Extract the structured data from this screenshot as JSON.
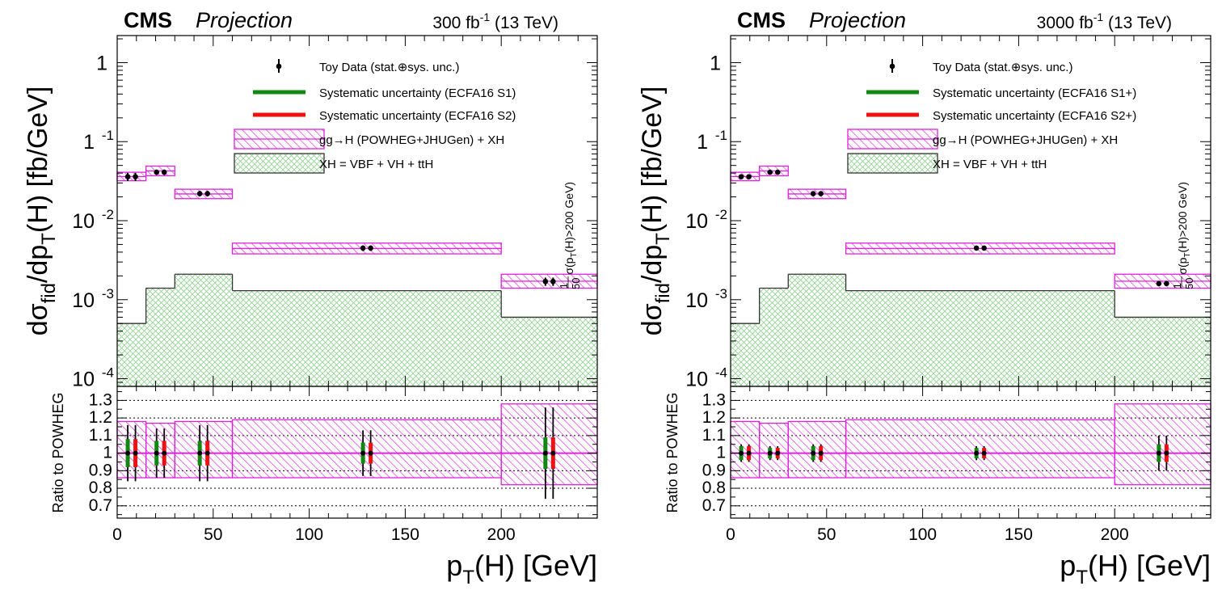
{
  "colors": {
    "magenta": "#e020e0",
    "green_band": "#8fd08f",
    "green_bar": "#118811",
    "red_bar": "#ee1111",
    "axis": "#000000"
  },
  "chart_data": [
    {
      "type": "bar",
      "experiment": "CMS",
      "label": "Projection",
      "lumi_main": "300 fb",
      "lumi_sup": "-1",
      "lumi_tail": " (13 TeV)",
      "xlabel_main": "p",
      "xlabel_sub": "T",
      "xlabel_tail": "(H) [GeV]",
      "ylabel": "dσfid/dpT(H) [fb/GeV]",
      "ylabel_parts": {
        "d_sigma": "dσ",
        "fid": "fid",
        "mid": "/dp",
        "T": "T",
        "tail": "(H) [fb/GeV]"
      },
      "yscale": "log",
      "ylim": [
        8e-05,
        2.2
      ],
      "xlim": [
        0,
        250
      ],
      "x_ticks": [
        "0",
        "50",
        "100",
        "150",
        "200"
      ],
      "x_tick_values": [
        0,
        50,
        100,
        150,
        200
      ],
      "y_tick_labels": [
        "10",
        "10",
        "10",
        "1"
      ],
      "y_tick_sup": [
        "-4",
        "-3",
        "-2",
        "-1"
      ],
      "bins": [
        [
          0,
          15
        ],
        [
          15,
          30
        ],
        [
          30,
          60
        ],
        [
          60,
          200
        ],
        [
          200,
          250
        ]
      ],
      "ggH_band": [
        [
          0.032,
          0.041
        ],
        [
          0.037,
          0.049
        ],
        [
          0.019,
          0.025
        ],
        [
          0.0038,
          0.0052
        ],
        [
          0.0014,
          0.0021
        ]
      ],
      "XH_values": [
        0.0005,
        0.0014,
        0.0021,
        0.0013,
        0.0006
      ],
      "toy_data": {
        "x_s1": [
          5.5,
          20.5,
          43,
          128,
          223
        ],
        "x_s2": [
          9.5,
          24.5,
          47,
          132,
          227
        ],
        "y": [
          0.036,
          0.041,
          0.022,
          0.0045,
          0.0017
        ],
        "rel_err": [
          0.12,
          0.08,
          0.08,
          0.08,
          0.12
        ]
      },
      "ratio": {
        "ylabel": "Ratio to POWHEG",
        "ylim": [
          0.63,
          1.38
        ],
        "y_ticks": [
          "0.7",
          "0.8",
          "0.9",
          "1",
          "1.1",
          "1.2",
          "1.3"
        ],
        "y_tick_values": [
          0.7,
          0.8,
          0.9,
          1.0,
          1.1,
          1.2,
          1.3
        ],
        "dotted_lines": [
          0.7,
          0.8,
          0.9,
          1.1,
          1.2,
          1.3
        ],
        "band_lo": [
          0.86,
          0.86,
          0.86,
          0.86,
          0.82
        ],
        "band_hi": [
          1.18,
          1.17,
          1.18,
          1.19,
          1.28
        ],
        "stat_err": [
          0.16,
          0.14,
          0.16,
          0.13,
          0.26
        ],
        "syst_err": [
          0.08,
          0.07,
          0.07,
          0.06,
          0.09
        ]
      },
      "note": "1/50 σ(pT(H)>200 GeV)",
      "note_parts": {
        "frac_num": "1",
        "frac_den": "50",
        "a": "σ(p",
        "T": "T",
        "b": "(H)>200 GeV)"
      },
      "legend": [
        {
          "kind": "data",
          "label": "Toy Data (stat.⊕sys. unc.)"
        },
        {
          "kind": "green",
          "label": "Systematic uncertainty (ECFA16 S1)"
        },
        {
          "kind": "red",
          "label": "Systematic uncertainty (ECFA16 S2)"
        },
        {
          "kind": "ggh",
          "label": "gg→H (POWHEG+JHUGen) + XH"
        },
        {
          "kind": "xh",
          "label": "XH = VBF + VH + ttH"
        }
      ]
    },
    {
      "type": "bar",
      "experiment": "CMS",
      "label": "Projection",
      "lumi_main": "3000 fb",
      "lumi_sup": "-1",
      "lumi_tail": " (13 TeV)",
      "xlabel_main": "p",
      "xlabel_sub": "T",
      "xlabel_tail": "(H) [GeV]",
      "ylabel": "dσfid/dpT(H) [fb/GeV]",
      "ylabel_parts": {
        "d_sigma": "dσ",
        "fid": "fid",
        "mid": "/dp",
        "T": "T",
        "tail": "(H) [fb/GeV]"
      },
      "yscale": "log",
      "ylim": [
        8e-05,
        2.2
      ],
      "xlim": [
        0,
        250
      ],
      "x_ticks": [
        "0",
        "50",
        "100",
        "150",
        "200"
      ],
      "x_tick_values": [
        0,
        50,
        100,
        150,
        200
      ],
      "y_tick_labels": [
        "10",
        "10",
        "10",
        "1"
      ],
      "y_tick_sup": [
        "-4",
        "-3",
        "-2",
        "-1"
      ],
      "bins": [
        [
          0,
          15
        ],
        [
          15,
          30
        ],
        [
          30,
          60
        ],
        [
          60,
          200
        ],
        [
          200,
          250
        ]
      ],
      "ggH_band": [
        [
          0.032,
          0.041
        ],
        [
          0.037,
          0.049
        ],
        [
          0.019,
          0.025
        ],
        [
          0.0038,
          0.0052
        ],
        [
          0.0014,
          0.0021
        ]
      ],
      "XH_values": [
        0.0005,
        0.0014,
        0.0021,
        0.0013,
        0.0006
      ],
      "toy_data": {
        "x_s1": [
          5.5,
          20.5,
          43,
          128,
          223
        ],
        "x_s2": [
          9.5,
          24.5,
          47,
          132,
          227
        ],
        "y": [
          0.036,
          0.041,
          0.022,
          0.0045,
          0.0016
        ],
        "rel_err": [
          0.05,
          0.04,
          0.04,
          0.04,
          0.06
        ]
      },
      "ratio": {
        "ylabel": "Ratio to POWHEG",
        "ylim": [
          0.63,
          1.38
        ],
        "y_ticks": [
          "0.7",
          "0.8",
          "0.9",
          "1",
          "1.1",
          "1.2",
          "1.3"
        ],
        "y_tick_values": [
          0.7,
          0.8,
          0.9,
          1.0,
          1.1,
          1.2,
          1.3
        ],
        "dotted_lines": [
          0.7,
          0.8,
          0.9,
          1.1,
          1.2,
          1.3
        ],
        "band_lo": [
          0.86,
          0.86,
          0.86,
          0.86,
          0.82
        ],
        "band_hi": [
          1.18,
          1.17,
          1.18,
          1.19,
          1.28
        ],
        "stat_err": [
          0.05,
          0.04,
          0.05,
          0.04,
          0.1
        ],
        "syst_err": [
          0.04,
          0.03,
          0.04,
          0.03,
          0.05
        ]
      },
      "note": "1/50 σ(pT(H)>200 GeV)",
      "note_parts": {
        "frac_num": "1",
        "frac_den": "50",
        "a": "σ(p",
        "T": "T",
        "b": "(H)>200 GeV)"
      },
      "legend": [
        {
          "kind": "data",
          "label": "Toy Data (stat.⊕sys. unc.)"
        },
        {
          "kind": "green",
          "label": "Systematic uncertainty (ECFA16 S1+)"
        },
        {
          "kind": "red",
          "label": "Systematic uncertainty (ECFA16 S2+)"
        },
        {
          "kind": "ggh",
          "label": "gg→H (POWHEG+JHUGen) + XH"
        },
        {
          "kind": "xh",
          "label": "XH = VBF + VH + ttH"
        }
      ]
    }
  ]
}
